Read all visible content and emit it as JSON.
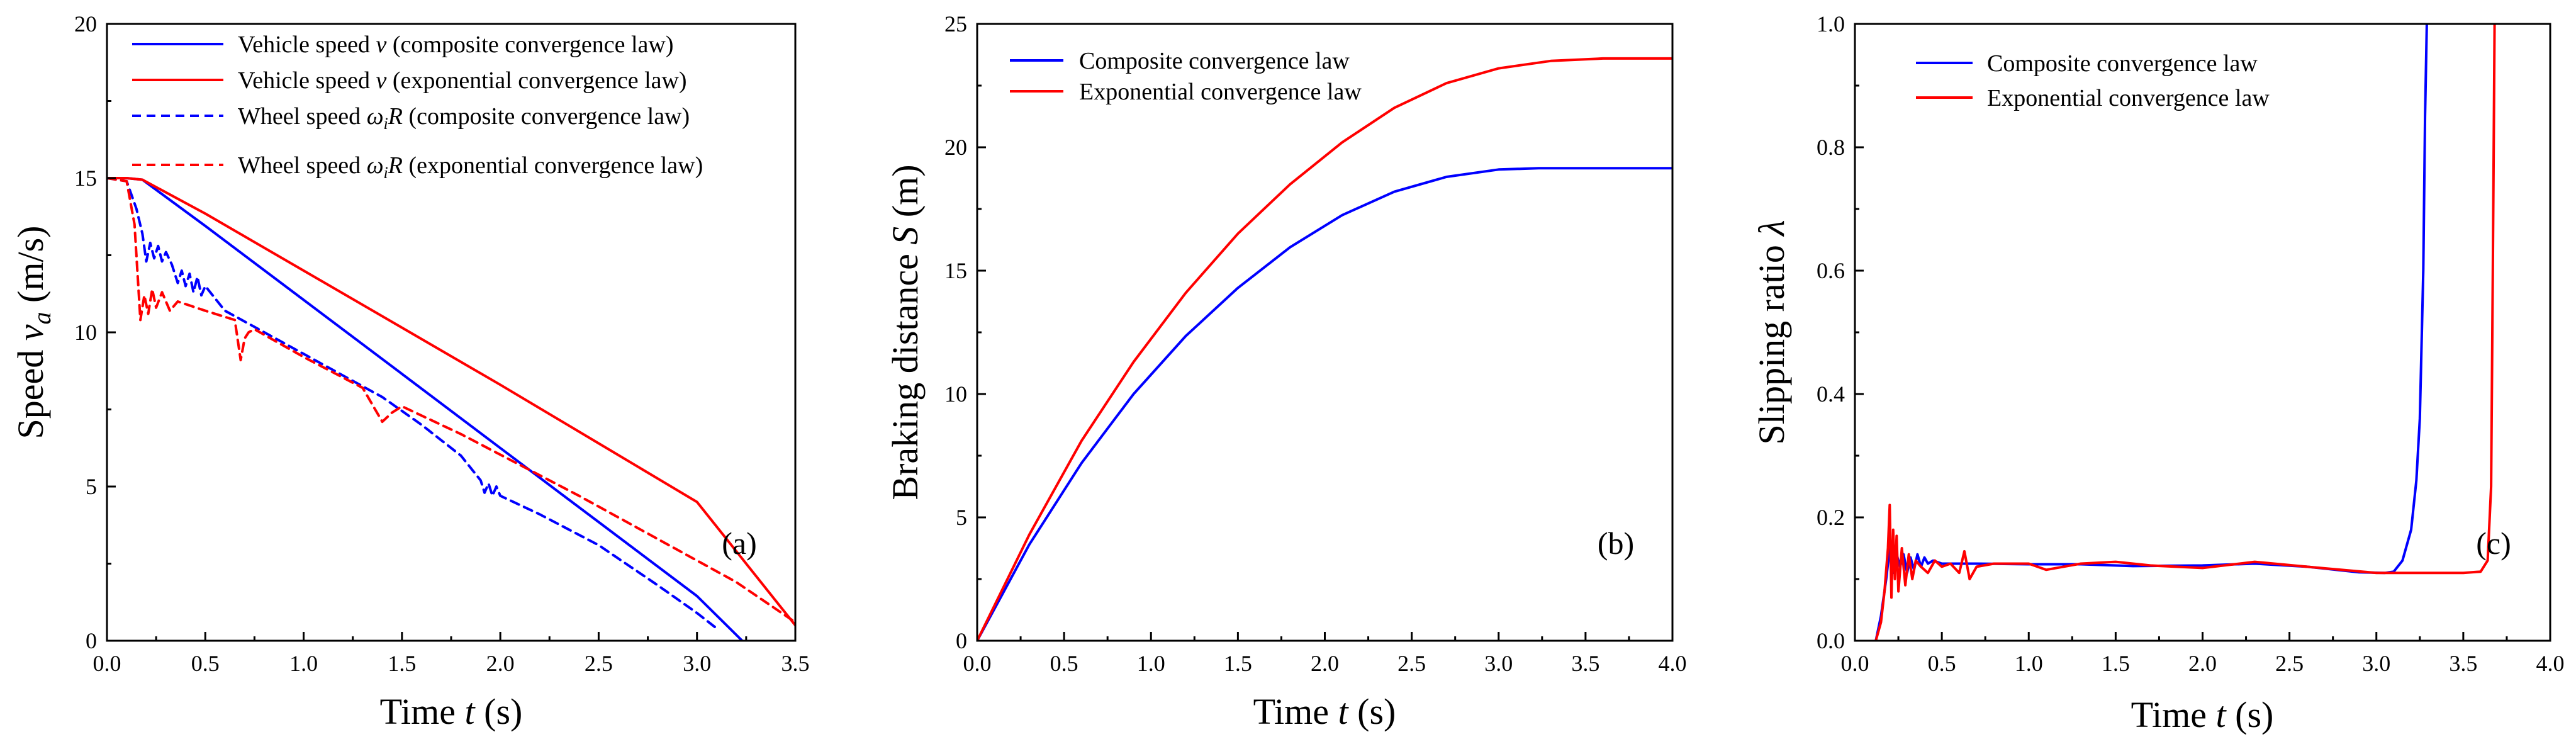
{
  "colors": {
    "blue": "#0000ff",
    "red": "#ff0000",
    "axis": "#000000"
  },
  "chart_data": [
    {
      "id": "a",
      "type": "line",
      "panel_label": "(a)",
      "xlabel": "Time t (s)",
      "ylabel": "Speed v_a (m/s)",
      "xlim": [
        0,
        3.5
      ],
      "ylim": [
        0,
        20
      ],
      "xticks": [
        0.0,
        0.5,
        1.0,
        1.5,
        2.0,
        2.5,
        3.0,
        3.5
      ],
      "xtick_labels": [
        "0.0",
        "0.5",
        "1.0",
        "1.5",
        "2.0",
        "2.5",
        "3.0",
        "3.5"
      ],
      "yticks": [
        0,
        5,
        10,
        15,
        20
      ],
      "ytick_labels": [
        "0",
        "5",
        "10",
        "15",
        "20"
      ],
      "legend_position": "top-center",
      "series": [
        {
          "name": "Vehicle speed v (composite convergence law)",
          "color": "#0000ff",
          "dash": "solid",
          "x": [
            0,
            0.1,
            0.18,
            0.5,
            1.0,
            1.5,
            2.0,
            2.5,
            3.0,
            3.23
          ],
          "y": [
            15.0,
            15.0,
            14.95,
            13.45,
            11.05,
            8.65,
            6.25,
            3.85,
            1.45,
            0.0
          ]
        },
        {
          "name": "Vehicle speed v (exponential convergence law)",
          "color": "#ff0000",
          "dash": "solid",
          "x": [
            0,
            0.1,
            0.18,
            0.5,
            1.0,
            1.5,
            2.0,
            2.5,
            3.0,
            3.5
          ],
          "y": [
            15.0,
            15.0,
            14.95,
            13.85,
            12.0,
            10.15,
            8.3,
            6.4,
            4.5,
            0.5
          ]
        },
        {
          "name": "Wheel speed ωiR (composite convergence law)",
          "color": "#0000ff",
          "dash": "dashed",
          "x": [
            0,
            0.1,
            0.15,
            0.18,
            0.2,
            0.22,
            0.24,
            0.26,
            0.28,
            0.3,
            0.33,
            0.36,
            0.38,
            0.4,
            0.42,
            0.44,
            0.46,
            0.48,
            0.5,
            0.6,
            0.8,
            1.0,
            1.2,
            1.4,
            1.6,
            1.8,
            1.9,
            1.92,
            1.94,
            1.96,
            1.98,
            2.0,
            2.2,
            2.5,
            2.8,
            3.0,
            3.1
          ],
          "y": [
            15.0,
            14.9,
            14.0,
            13.2,
            12.3,
            12.9,
            12.4,
            12.8,
            12.3,
            12.6,
            12.2,
            11.6,
            12.0,
            11.5,
            11.9,
            11.3,
            11.8,
            11.2,
            11.5,
            10.7,
            10.0,
            9.3,
            8.6,
            7.9,
            7.0,
            6.0,
            5.2,
            4.8,
            5.1,
            4.7,
            5.0,
            4.7,
            4.1,
            3.1,
            1.8,
            0.9,
            0.4
          ]
        },
        {
          "name": "Wheel speed ωiR (exponential convergence law)",
          "color": "#ff0000",
          "dash": "dashed",
          "x": [
            0,
            0.1,
            0.14,
            0.17,
            0.19,
            0.21,
            0.23,
            0.25,
            0.28,
            0.32,
            0.36,
            0.5,
            0.65,
            0.68,
            0.7,
            0.72,
            0.75,
            1.0,
            1.3,
            1.4,
            1.45,
            1.5,
            1.8,
            2.1,
            2.4,
            2.8,
            3.2,
            3.5
          ],
          "y": [
            15.0,
            14.9,
            13.5,
            10.4,
            11.2,
            10.6,
            11.4,
            10.8,
            11.3,
            10.7,
            11.0,
            10.7,
            10.4,
            9.1,
            9.8,
            10.0,
            10.1,
            9.2,
            8.2,
            7.1,
            7.4,
            7.6,
            6.7,
            5.7,
            4.7,
            3.3,
            1.9,
            0.6
          ]
        }
      ]
    },
    {
      "id": "b",
      "type": "line",
      "panel_label": "(b)",
      "xlabel": "Time t (s)",
      "ylabel": "Braking distance S (m)",
      "xlim": [
        0,
        4.0
      ],
      "ylim": [
        0,
        25
      ],
      "xticks": [
        0.0,
        0.5,
        1.0,
        1.5,
        2.0,
        2.5,
        3.0,
        3.5,
        4.0
      ],
      "xtick_labels": [
        "0.0",
        "0.5",
        "1.0",
        "1.5",
        "2.0",
        "2.5",
        "3.0",
        "3.5",
        "4.0"
      ],
      "yticks": [
        0,
        5,
        10,
        15,
        20,
        25
      ],
      "ytick_labels": [
        "0",
        "5",
        "10",
        "15",
        "20",
        "25"
      ],
      "legend_position": "top-left",
      "series": [
        {
          "name": "Composite convergence law",
          "color": "#0000ff",
          "dash": "solid",
          "x": [
            0,
            0.3,
            0.6,
            0.9,
            1.2,
            1.5,
            1.8,
            2.1,
            2.4,
            2.7,
            3.0,
            3.23,
            3.5,
            4.0
          ],
          "y": [
            0,
            3.9,
            7.2,
            10.0,
            12.35,
            14.3,
            15.95,
            17.25,
            18.2,
            18.8,
            19.1,
            19.15,
            19.15,
            19.15
          ]
        },
        {
          "name": "Exponential convergence law",
          "color": "#ff0000",
          "dash": "solid",
          "x": [
            0,
            0.3,
            0.6,
            0.9,
            1.2,
            1.5,
            1.8,
            2.1,
            2.4,
            2.7,
            3.0,
            3.3,
            3.6,
            3.7,
            4.0
          ],
          "y": [
            0,
            4.3,
            8.1,
            11.3,
            14.1,
            16.5,
            18.5,
            20.2,
            21.6,
            22.6,
            23.2,
            23.5,
            23.6,
            23.6,
            23.6
          ]
        }
      ]
    },
    {
      "id": "c",
      "type": "line",
      "panel_label": "(c)",
      "xlabel": "Time t (s)",
      "ylabel": "Slipping ratio λ",
      "xlim": [
        0,
        4.0
      ],
      "ylim": [
        0,
        1.0
      ],
      "xticks": [
        0.0,
        0.5,
        1.0,
        1.5,
        2.0,
        2.5,
        3.0,
        3.5,
        4.0
      ],
      "xtick_labels": [
        "0.0",
        "0.5",
        "1.0",
        "1.5",
        "2.0",
        "2.5",
        "3.0",
        "3.5",
        "4.0"
      ],
      "yticks": [
        0.0,
        0.2,
        0.4,
        0.6,
        0.8,
        1.0
      ],
      "ytick_labels": [
        "0.0",
        "0.2",
        "0.4",
        "0.6",
        "0.8",
        "1.0"
      ],
      "legend_position": "top-left",
      "series": [
        {
          "name": "Composite convergence law",
          "color": "#0000ff",
          "dash": "solid",
          "x": [
            0.12,
            0.15,
            0.18,
            0.2,
            0.22,
            0.24,
            0.26,
            0.28,
            0.3,
            0.32,
            0.34,
            0.36,
            0.38,
            0.4,
            0.42,
            0.45,
            0.5,
            0.7,
            1.0,
            1.3,
            1.6,
            2.0,
            2.3,
            2.6,
            2.9,
            3.05,
            3.1,
            3.15,
            3.2,
            3.23,
            3.25,
            3.27,
            3.28,
            3.29
          ],
          "y": [
            0.0,
            0.04,
            0.1,
            0.15,
            0.11,
            0.14,
            0.12,
            0.14,
            0.11,
            0.135,
            0.115,
            0.14,
            0.12,
            0.135,
            0.125,
            0.13,
            0.125,
            0.125,
            0.124,
            0.124,
            0.121,
            0.122,
            0.125,
            0.12,
            0.111,
            0.11,
            0.112,
            0.13,
            0.18,
            0.26,
            0.36,
            0.6,
            0.85,
            1.0
          ]
        },
        {
          "name": "Exponential convergence law",
          "color": "#ff0000",
          "dash": "solid",
          "x": [
            0.12,
            0.15,
            0.17,
            0.19,
            0.2,
            0.21,
            0.22,
            0.23,
            0.24,
            0.25,
            0.27,
            0.29,
            0.31,
            0.33,
            0.35,
            0.38,
            0.42,
            0.46,
            0.5,
            0.55,
            0.6,
            0.63,
            0.66,
            0.7,
            0.8,
            1.0,
            1.1,
            1.3,
            1.5,
            1.7,
            2.0,
            2.3,
            2.6,
            3.0,
            3.2,
            3.5,
            3.6,
            3.64,
            3.66,
            3.67,
            3.68
          ],
          "y": [
            0.0,
            0.03,
            0.08,
            0.15,
            0.22,
            0.07,
            0.18,
            0.1,
            0.17,
            0.08,
            0.15,
            0.09,
            0.14,
            0.1,
            0.13,
            0.12,
            0.11,
            0.13,
            0.12,
            0.125,
            0.11,
            0.145,
            0.1,
            0.12,
            0.125,
            0.125,
            0.115,
            0.125,
            0.128,
            0.122,
            0.118,
            0.128,
            0.12,
            0.11,
            0.11,
            0.11,
            0.112,
            0.13,
            0.25,
            0.6,
            1.0
          ]
        }
      ]
    }
  ]
}
